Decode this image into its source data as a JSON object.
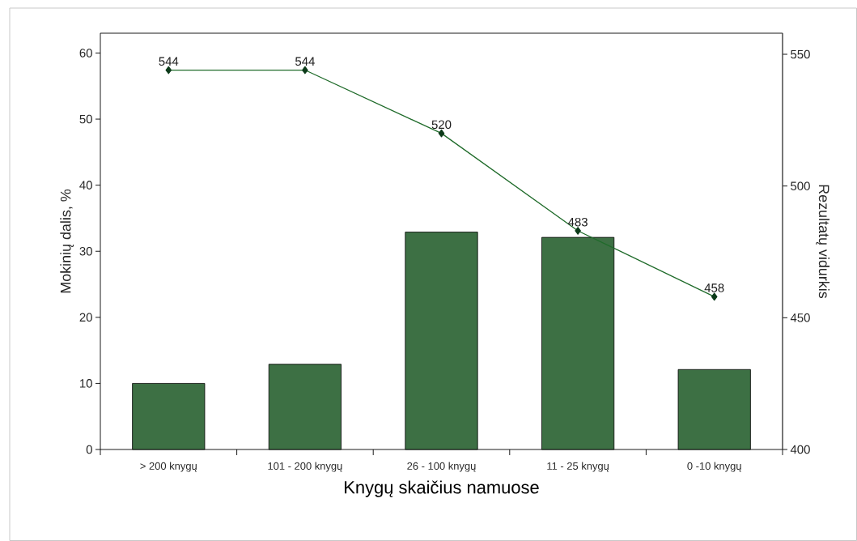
{
  "chart_data": {
    "type": "bar",
    "categories": [
      "> 200 knygų",
      "101 - 200 knygų",
      "26 - 100 knygų",
      "11 - 25 knygų",
      "0 -10 knygų"
    ],
    "xlabel": "Knygų skaičius namuose",
    "ylabel": "Mokinių dalis, %",
    "y2label": "Rezultatų vidurkis",
    "ylim": [
      0,
      63
    ],
    "yticks": [
      0,
      10,
      20,
      30,
      40,
      50,
      60
    ],
    "y2lim": [
      400,
      558
    ],
    "y2ticks": [
      400,
      450,
      500,
      550
    ],
    "series": [
      {
        "color": "#3d7044",
        "values": [
          10,
          12.9,
          32.9,
          32.1,
          12.1
        ]
      },
      {
        "type": "line",
        "axis": "y2",
        "color": "#1f6b2a",
        "marker": "diamond",
        "values": [
          544,
          544,
          520,
          483,
          458
        ],
        "value_labels": [
          "544",
          "544",
          "520",
          "483",
          "458"
        ]
      }
    ]
  }
}
